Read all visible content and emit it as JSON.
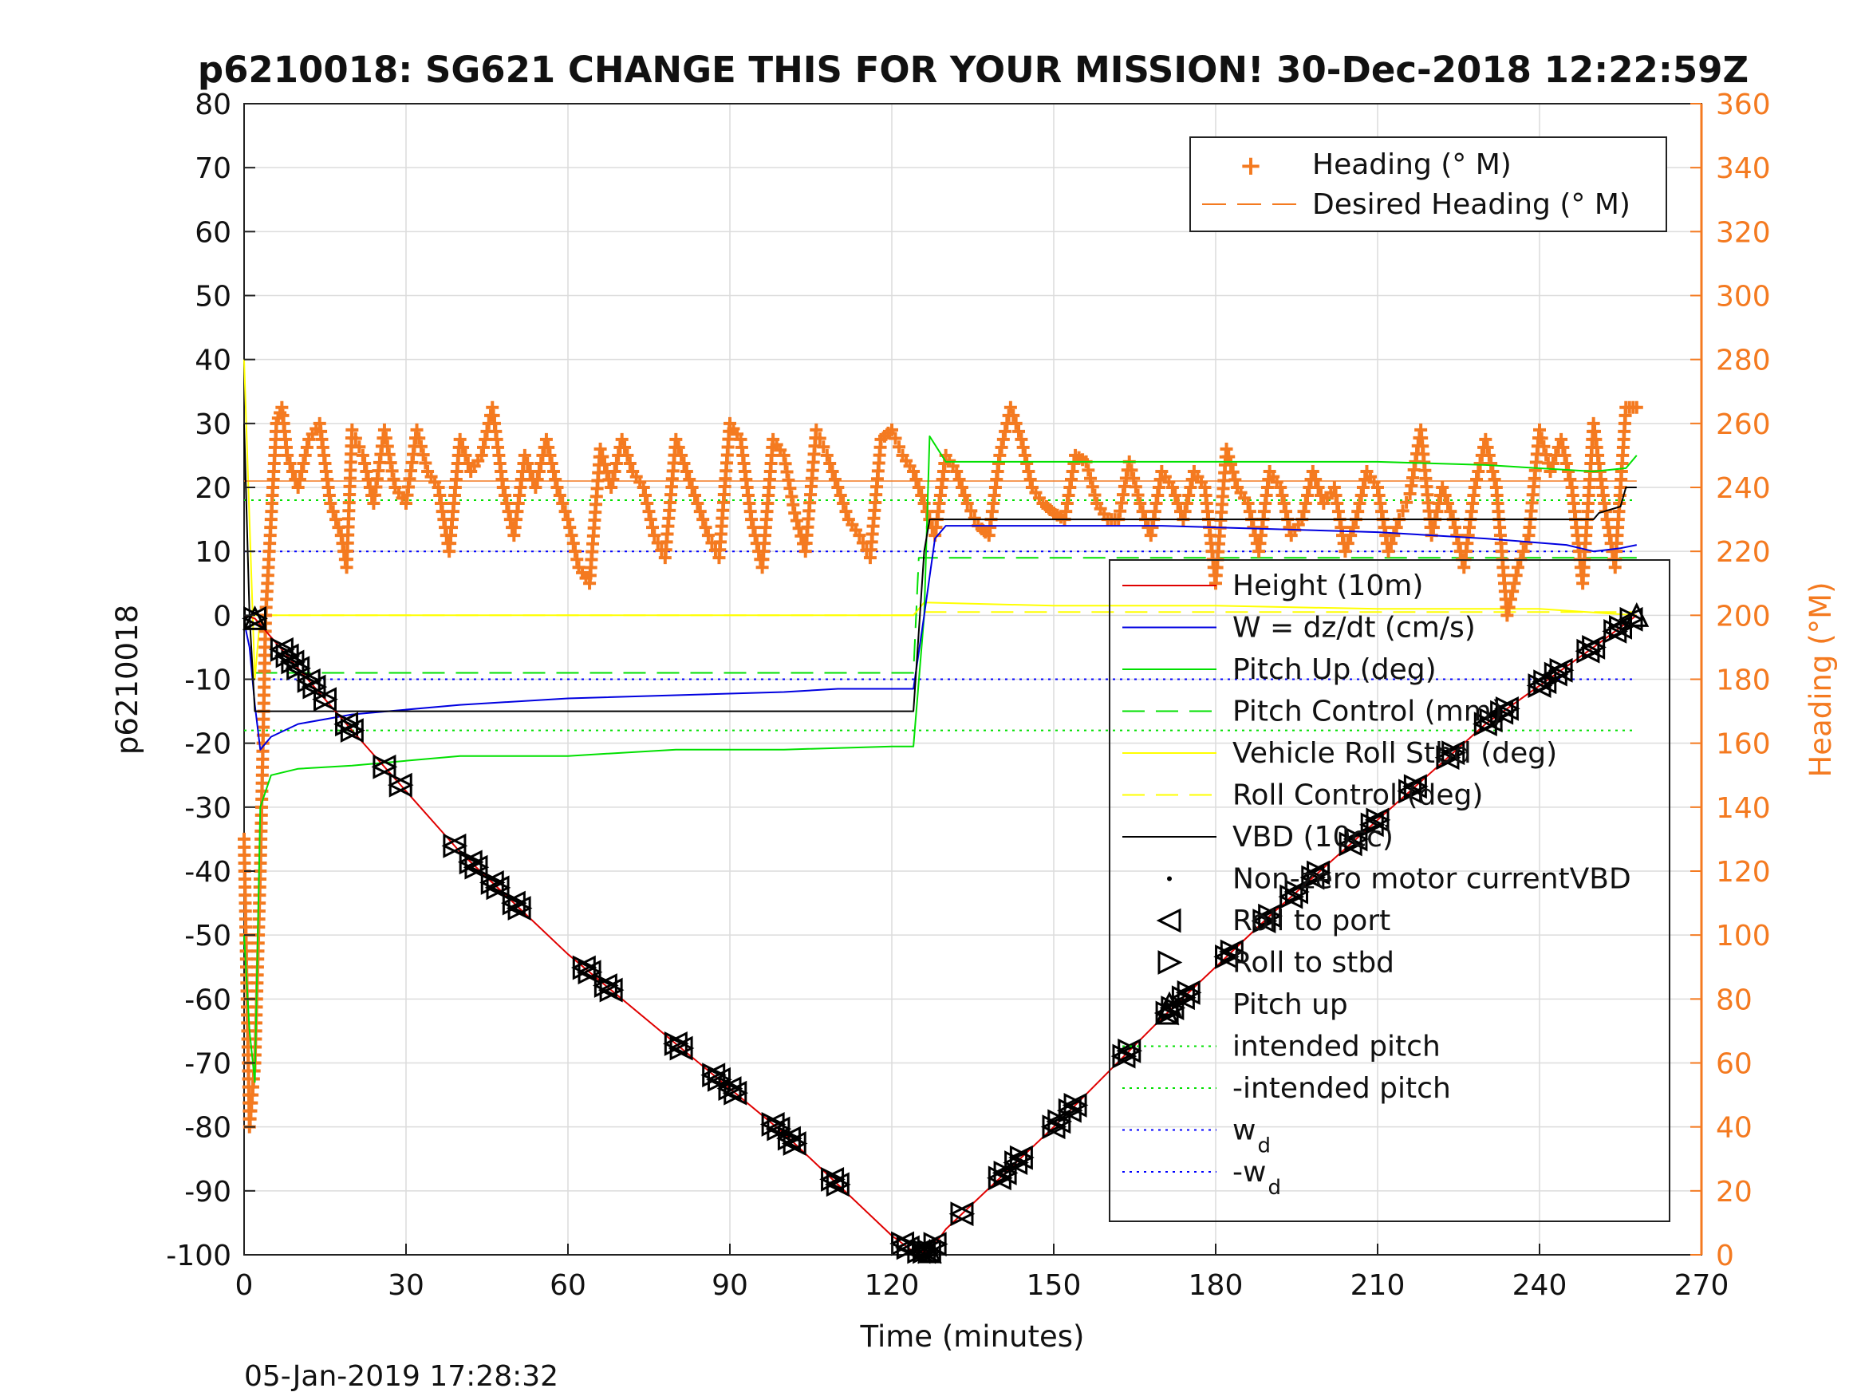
{
  "chart_data": {
    "type": "line",
    "title": "p6210018: SG621 CHANGE THIS FOR YOUR MISSION! 30-Dec-2018 12:22:59Z",
    "xlabel": "Time (minutes)",
    "ylabel_left": "p6210018",
    "ylabel_right": "Heading (°M)",
    "timestamp": "05-Jan-2019 17:28:32",
    "xlim": [
      0,
      270
    ],
    "ylim_left": [
      -100,
      80
    ],
    "ylim_right": [
      0,
      360
    ],
    "x_ticks": [
      "0",
      "30",
      "60",
      "90",
      "120",
      "150",
      "180",
      "210",
      "240",
      "270"
    ],
    "y_ticks_left": [
      "80",
      "70",
      "60",
      "50",
      "40",
      "30",
      "20",
      "10",
      "0",
      "-10",
      "-20",
      "-30",
      "-40",
      "-50",
      "-60",
      "-70",
      "-80",
      "-90",
      "-100"
    ],
    "y_ticks_right": [
      "360",
      "340",
      "320",
      "300",
      "280",
      "260",
      "240",
      "220",
      "200",
      "180",
      "160",
      "140",
      "120",
      "100",
      "80",
      "60",
      "40",
      "20",
      "0"
    ],
    "grid": true,
    "colors": {
      "heading": "#f47a20",
      "height": "#e00000",
      "w": "#0000e0",
      "pitch": "#00e000",
      "roll": "#ffff00",
      "vbd": "#000000",
      "intended": "#00e000",
      "wd": "#0000ff"
    },
    "legend_right": {
      "placement": "top-right",
      "entries": [
        "Heading (° M)",
        "Desired Heading (° M)"
      ]
    },
    "legend_left": {
      "placement": "center-right",
      "entries": [
        "Height (10m)",
        "W = dz/dt (cm/s)",
        "Pitch Up (deg)",
        "Pitch Control (mm)",
        "Vehicle Roll Stbd (deg)",
        "Roll Control (deg)",
        "VBD (10cc)",
        "Non-zero motor currentVBD",
        "Roll to port",
        "Roll to stbd",
        "Pitch up",
        "intended pitch",
        "-intended pitch",
        "w",
        "-w"
      ],
      "subscripts": {
        "13": "d",
        "14": "d"
      }
    },
    "series": [
      {
        "name": "Height (10m)",
        "axis": "left",
        "x": [
          0,
          2,
          20,
          40,
          60,
          80,
          100,
          120,
          124,
          127,
          130,
          150,
          170,
          190,
          210,
          230,
          250,
          258
        ],
        "y": [
          0,
          -0.5,
          -18,
          -37,
          -53,
          -67,
          -81,
          -97,
          -99.5,
          -99.5,
          -96,
          -80,
          -63,
          -47,
          -32,
          -17,
          -5,
          0
        ]
      },
      {
        "name": "W = dz/dt (cm/s)",
        "axis": "left",
        "x": [
          0,
          1,
          2,
          3,
          5,
          10,
          20,
          40,
          60,
          80,
          100,
          110,
          124,
          126,
          128,
          130,
          150,
          170,
          190,
          210,
          230,
          245,
          250,
          255,
          258
        ],
        "y": [
          -1,
          -5,
          -14,
          -21,
          -19,
          -17,
          -15.5,
          -14,
          -13,
          -12.5,
          -12,
          -11.5,
          -11.5,
          0,
          12,
          14,
          14,
          14,
          13.5,
          13,
          12,
          11,
          10,
          10.5,
          11
        ]
      },
      {
        "name": "Pitch Up (deg)",
        "axis": "left",
        "x": [
          0,
          1,
          2,
          3,
          5,
          10,
          20,
          40,
          60,
          80,
          100,
          120,
          124,
          126,
          127,
          130,
          150,
          170,
          190,
          210,
          230,
          250,
          256,
          258
        ],
        "y": [
          -50,
          -65,
          -73,
          -30,
          -25,
          -24,
          -23.5,
          -22,
          -22,
          -21,
          -21,
          -20.5,
          -20.5,
          0,
          28,
          24,
          24,
          24,
          24,
          24,
          23.5,
          22.5,
          23,
          25
        ]
      },
      {
        "name": "Pitch Control (mm)",
        "axis": "left",
        "x": [
          2,
          124,
          125,
          258
        ],
        "y": [
          -9,
          -9,
          9,
          9
        ]
      },
      {
        "name": "Vehicle Roll Stbd (deg)",
        "axis": "left",
        "x": [
          0,
          2,
          3,
          5,
          30,
          60,
          90,
          120,
          124,
          126,
          150,
          180,
          210,
          240,
          258
        ],
        "y": [
          40,
          -10,
          0,
          0,
          0,
          0,
          0,
          0,
          0,
          2,
          1.5,
          1.5,
          1,
          1,
          0
        ]
      },
      {
        "name": "Roll Control (deg)",
        "axis": "left",
        "x": [
          2,
          124,
          125,
          258
        ],
        "y": [
          0,
          0,
          0.5,
          0.5
        ]
      },
      {
        "name": "VBD (10cc)",
        "axis": "left",
        "x": [
          0,
          1,
          2,
          124,
          126,
          127,
          250,
          251,
          255,
          256,
          258
        ],
        "y": [
          30,
          0,
          -15,
          -15,
          10,
          15,
          15,
          16,
          17,
          20,
          20
        ]
      },
      {
        "name": "intended pitch",
        "axis": "left",
        "x": [
          0,
          258
        ],
        "y": [
          18,
          18
        ]
      },
      {
        "name": "-intended pitch",
        "axis": "left",
        "x": [
          0,
          258
        ],
        "y": [
          -18,
          -18
        ]
      },
      {
        "name": "w",
        "axis": "left",
        "x": [
          0,
          258
        ],
        "y": [
          10,
          10
        ]
      },
      {
        "name": "-w",
        "axis": "left",
        "x": [
          0,
          258
        ],
        "y": [
          -10,
          -10
        ]
      },
      {
        "name": "Desired Heading (° M)",
        "axis": "right",
        "x": [
          0,
          258
        ],
        "y": [
          242,
          242
        ]
      },
      {
        "name": "Heading (° M)",
        "axis": "right",
        "x": [
          0,
          1,
          2,
          3,
          4,
          5,
          6,
          7,
          8,
          10,
          12,
          14,
          16,
          18,
          19,
          20,
          22,
          24,
          26,
          28,
          30,
          32,
          34,
          36,
          38,
          40,
          42,
          44,
          46,
          48,
          50,
          52,
          54,
          56,
          58,
          60,
          62,
          64,
          66,
          68,
          70,
          72,
          74,
          76,
          78,
          80,
          82,
          84,
          86,
          88,
          90,
          92,
          94,
          96,
          98,
          100,
          102,
          104,
          106,
          108,
          110,
          112,
          114,
          116,
          118,
          120,
          122,
          124,
          126,
          128,
          130,
          132,
          134,
          136,
          138,
          140,
          142,
          144,
          146,
          148,
          150,
          152,
          154,
          156,
          158,
          160,
          162,
          164,
          166,
          168,
          170,
          172,
          174,
          176,
          178,
          180,
          182,
          184,
          186,
          188,
          190,
          192,
          194,
          196,
          198,
          200,
          202,
          204,
          206,
          208,
          210,
          212,
          214,
          216,
          218,
          220,
          222,
          224,
          226,
          228,
          230,
          232,
          234,
          236,
          238,
          240,
          242,
          244,
          246,
          248,
          250,
          252,
          254,
          256,
          258
        ],
        "y": [
          130,
          40,
          60,
          120,
          200,
          230,
          260,
          265,
          250,
          240,
          255,
          260,
          235,
          225,
          215,
          258,
          250,
          235,
          258,
          240,
          235,
          258,
          245,
          240,
          220,
          255,
          245,
          250,
          265,
          240,
          225,
          250,
          240,
          255,
          240,
          230,
          215,
          210,
          252,
          240,
          255,
          245,
          240,
          225,
          218,
          255,
          245,
          235,
          225,
          218,
          260,
          255,
          230,
          215,
          255,
          250,
          232,
          220,
          258,
          250,
          240,
          230,
          225,
          218,
          255,
          258,
          250,
          245,
          235,
          225,
          250,
          245,
          235,
          228,
          225,
          250,
          265,
          255,
          240,
          235,
          232,
          230,
          250,
          248,
          235,
          230,
          230,
          248,
          235,
          225,
          245,
          240,
          230,
          245,
          240,
          210,
          252,
          240,
          235,
          220,
          245,
          240,
          225,
          230,
          245,
          235,
          240,
          220,
          230,
          245,
          240,
          220,
          230,
          238,
          258,
          225,
          240,
          230,
          215,
          240,
          255,
          240,
          200,
          215,
          225,
          258,
          245,
          255,
          240,
          210,
          260,
          235,
          215,
          265,
          265
        ]
      }
    ],
    "markers": {
      "roll_to_port_and_stbd_x": [
        2,
        7,
        8,
        9,
        10,
        12,
        13,
        15,
        19,
        20,
        26,
        29,
        39,
        42,
        43,
        46,
        47,
        50,
        51,
        63,
        64,
        67,
        68,
        80,
        81,
        87,
        88,
        90,
        91,
        98,
        99,
        101,
        102,
        109,
        110,
        122,
        123,
        125,
        126,
        127,
        128,
        133,
        140,
        141,
        143,
        144,
        150,
        151,
        153,
        154,
        163,
        164,
        171,
        172,
        174,
        175,
        182,
        183,
        189,
        190,
        194,
        195,
        198,
        199,
        205,
        206,
        209,
        210,
        216,
        217,
        223,
        224,
        230,
        231,
        233,
        234,
        240,
        241,
        243,
        244,
        249,
        250,
        254,
        255,
        257
      ],
      "pitch_up_x": [
        2,
        127,
        171,
        258
      ]
    }
  }
}
